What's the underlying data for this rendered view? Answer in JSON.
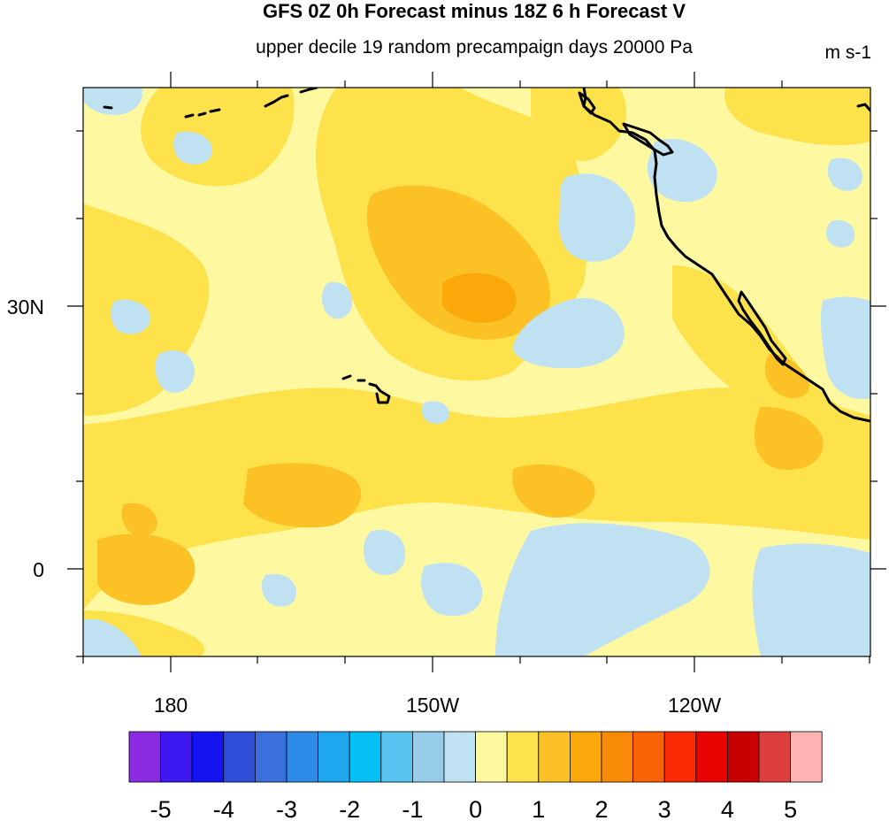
{
  "title": "GFS 0Z 0h Forecast minus 18Z 6 h Forecast V",
  "subtitle": "upper decile 19 random precampaign days 20000 Pa",
  "units": "m s-1",
  "map": {
    "x_tick_labels": [
      "180",
      "150W",
      "120W"
    ],
    "y_tick_labels": [
      "30N",
      "0"
    ],
    "grid": false
  },
  "colorbar": {
    "colors": [
      "#8a2be2",
      "#3d18f0",
      "#1414f0",
      "#2f4fd8",
      "#3a6fdc",
      "#2e8be8",
      "#1ea6ee",
      "#06c1f5",
      "#59c4f1",
      "#97cde9",
      "#bfe1f2",
      "#fef8a0",
      "#fde24b",
      "#fcc124",
      "#fba80a",
      "#f98a08",
      "#f96305",
      "#fc2a04",
      "#e80202",
      "#c80000",
      "#df3e3e",
      "#ffb3b3"
    ],
    "tick_labels": [
      "-5",
      "-4",
      "-3",
      "-2",
      "-1",
      "0",
      "1",
      "2",
      "3",
      "4",
      "5"
    ]
  },
  "field_colors": {
    "pale_yellow": "#fef8a0",
    "yellow": "#fde24b",
    "gold": "#fcc124",
    "orange": "#fba80a",
    "light_blue": "#bfe1f2",
    "blue": "#97cde9",
    "coast": "#000000"
  }
}
